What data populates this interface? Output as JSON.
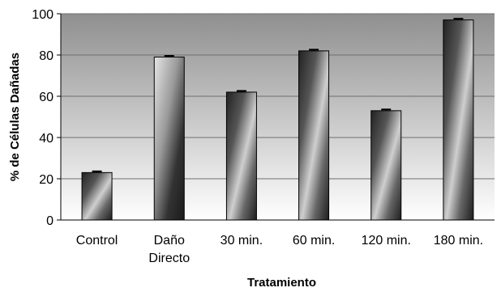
{
  "chart_data": {
    "type": "bar",
    "categories": [
      [
        "Control"
      ],
      [
        "Daño",
        "Directo"
      ],
      [
        "30 min."
      ],
      [
        "60 min."
      ],
      [
        "120 min."
      ],
      [
        "180 min."
      ]
    ],
    "values": [
      23,
      79,
      62,
      82,
      53,
      97
    ],
    "errors": [
      0.6,
      0.6,
      0.6,
      0.6,
      0.6,
      0.6
    ],
    "ylim": [
      0,
      100
    ],
    "yticks": [
      0,
      20,
      40,
      60,
      80,
      100
    ],
    "xlabel": "Tratamiento",
    "ylabel": "% de Células Dañadas",
    "grid": true,
    "colors": {
      "plot_bg_top": "#8f8f8f",
      "plot_bg_bottom": "#ffffff",
      "gridline": "#6e6e6e",
      "bar_dark": "#1e1e1e",
      "bar_light": "#d8d8d8",
      "bar_border": "#000000"
    }
  }
}
